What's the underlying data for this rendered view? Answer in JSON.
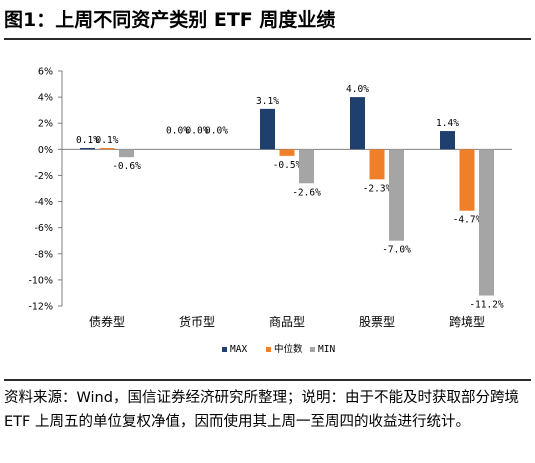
{
  "header": {
    "title": "图1：上周不同资产类别 ETF 周度业绩"
  },
  "footnote": {
    "text": "资料来源：Wind，国信证券经济研究所整理；说明：由于不能及时获取部分跨境 ETF 上周五的单位复权净值，因而使用其上周一至周四的收益进行统计。"
  },
  "colors": {
    "MAX": "#1f3f6e",
    "中位数": "#f07f2a",
    "MIN": "#a5a5a5"
  },
  "chart_data": {
    "type": "bar",
    "categories": [
      "债券型",
      "货币型",
      "商品型",
      "股票型",
      "跨境型"
    ],
    "series": [
      {
        "name": "MAX",
        "values": [
          0.1,
          0.0,
          3.1,
          4.0,
          1.4
        ]
      },
      {
        "name": "中位数",
        "values": [
          0.1,
          0.0,
          -0.5,
          -2.3,
          -4.7
        ]
      },
      {
        "name": "MIN",
        "values": [
          -0.6,
          0.0,
          -2.6,
          -7.0,
          -11.2
        ]
      }
    ],
    "data_labels": [
      [
        "0.1%",
        "0.0%",
        "3.1%",
        "4.0%",
        "1.4%"
      ],
      [
        "0.1%",
        "0.0%",
        "-0.5%",
        "-2.3%",
        "-4.7%"
      ],
      [
        "-0.6%",
        "0.0%",
        "-2.6%",
        "-7.0%",
        "-11.2%"
      ]
    ],
    "yticks": [
      6,
      4,
      2,
      0,
      -2,
      -4,
      -6,
      -8,
      -10,
      -12
    ],
    "ytick_labels": [
      "6%",
      "4%",
      "2%",
      "0%",
      "-2%",
      "-4%",
      "-6%",
      "-8%",
      "-10%",
      "-12%"
    ],
    "ylim": [
      -12,
      6
    ],
    "grid": false,
    "legend": {
      "position": "bottom-right",
      "entries": [
        "MAX",
        "中位数",
        "MIN"
      ]
    }
  }
}
